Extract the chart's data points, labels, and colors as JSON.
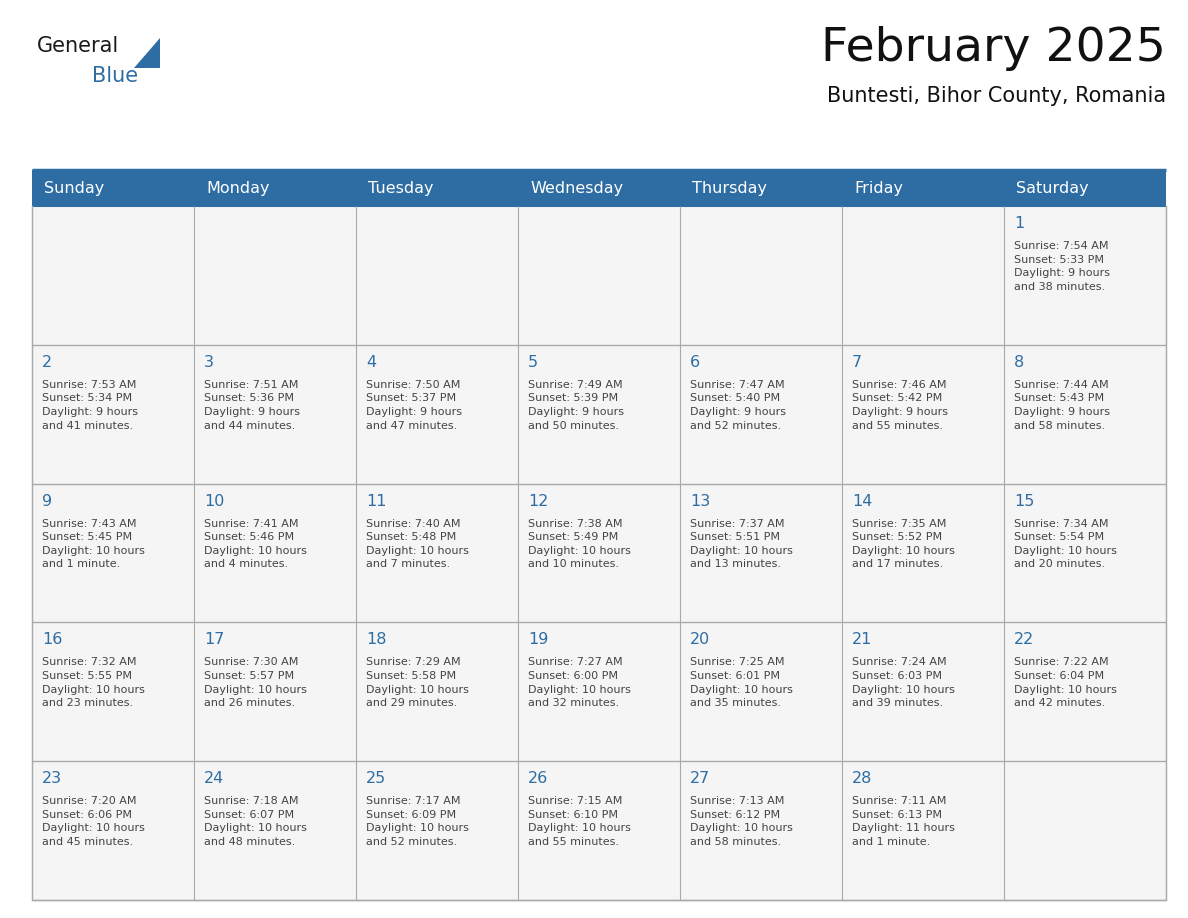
{
  "title": "February 2025",
  "subtitle": "Buntesti, Bihor County, Romania",
  "header_bg": "#2E6DA4",
  "header_text": "#FFFFFF",
  "cell_bg": "#F5F5F5",
  "day_number_color": "#2E6DA4",
  "text_color": "#444444",
  "border_color": "#AAAAAA",
  "line_color": "#2E6DA4",
  "days_of_week": [
    "Sunday",
    "Monday",
    "Tuesday",
    "Wednesday",
    "Thursday",
    "Friday",
    "Saturday"
  ],
  "weeks": [
    [
      {
        "day": "",
        "info": ""
      },
      {
        "day": "",
        "info": ""
      },
      {
        "day": "",
        "info": ""
      },
      {
        "day": "",
        "info": ""
      },
      {
        "day": "",
        "info": ""
      },
      {
        "day": "",
        "info": ""
      },
      {
        "day": "1",
        "info": "Sunrise: 7:54 AM\nSunset: 5:33 PM\nDaylight: 9 hours\nand 38 minutes."
      }
    ],
    [
      {
        "day": "2",
        "info": "Sunrise: 7:53 AM\nSunset: 5:34 PM\nDaylight: 9 hours\nand 41 minutes."
      },
      {
        "day": "3",
        "info": "Sunrise: 7:51 AM\nSunset: 5:36 PM\nDaylight: 9 hours\nand 44 minutes."
      },
      {
        "day": "4",
        "info": "Sunrise: 7:50 AM\nSunset: 5:37 PM\nDaylight: 9 hours\nand 47 minutes."
      },
      {
        "day": "5",
        "info": "Sunrise: 7:49 AM\nSunset: 5:39 PM\nDaylight: 9 hours\nand 50 minutes."
      },
      {
        "day": "6",
        "info": "Sunrise: 7:47 AM\nSunset: 5:40 PM\nDaylight: 9 hours\nand 52 minutes."
      },
      {
        "day": "7",
        "info": "Sunrise: 7:46 AM\nSunset: 5:42 PM\nDaylight: 9 hours\nand 55 minutes."
      },
      {
        "day": "8",
        "info": "Sunrise: 7:44 AM\nSunset: 5:43 PM\nDaylight: 9 hours\nand 58 minutes."
      }
    ],
    [
      {
        "day": "9",
        "info": "Sunrise: 7:43 AM\nSunset: 5:45 PM\nDaylight: 10 hours\nand 1 minute."
      },
      {
        "day": "10",
        "info": "Sunrise: 7:41 AM\nSunset: 5:46 PM\nDaylight: 10 hours\nand 4 minutes."
      },
      {
        "day": "11",
        "info": "Sunrise: 7:40 AM\nSunset: 5:48 PM\nDaylight: 10 hours\nand 7 minutes."
      },
      {
        "day": "12",
        "info": "Sunrise: 7:38 AM\nSunset: 5:49 PM\nDaylight: 10 hours\nand 10 minutes."
      },
      {
        "day": "13",
        "info": "Sunrise: 7:37 AM\nSunset: 5:51 PM\nDaylight: 10 hours\nand 13 minutes."
      },
      {
        "day": "14",
        "info": "Sunrise: 7:35 AM\nSunset: 5:52 PM\nDaylight: 10 hours\nand 17 minutes."
      },
      {
        "day": "15",
        "info": "Sunrise: 7:34 AM\nSunset: 5:54 PM\nDaylight: 10 hours\nand 20 minutes."
      }
    ],
    [
      {
        "day": "16",
        "info": "Sunrise: 7:32 AM\nSunset: 5:55 PM\nDaylight: 10 hours\nand 23 minutes."
      },
      {
        "day": "17",
        "info": "Sunrise: 7:30 AM\nSunset: 5:57 PM\nDaylight: 10 hours\nand 26 minutes."
      },
      {
        "day": "18",
        "info": "Sunrise: 7:29 AM\nSunset: 5:58 PM\nDaylight: 10 hours\nand 29 minutes."
      },
      {
        "day": "19",
        "info": "Sunrise: 7:27 AM\nSunset: 6:00 PM\nDaylight: 10 hours\nand 32 minutes."
      },
      {
        "day": "20",
        "info": "Sunrise: 7:25 AM\nSunset: 6:01 PM\nDaylight: 10 hours\nand 35 minutes."
      },
      {
        "day": "21",
        "info": "Sunrise: 7:24 AM\nSunset: 6:03 PM\nDaylight: 10 hours\nand 39 minutes."
      },
      {
        "day": "22",
        "info": "Sunrise: 7:22 AM\nSunset: 6:04 PM\nDaylight: 10 hours\nand 42 minutes."
      }
    ],
    [
      {
        "day": "23",
        "info": "Sunrise: 7:20 AM\nSunset: 6:06 PM\nDaylight: 10 hours\nand 45 minutes."
      },
      {
        "day": "24",
        "info": "Sunrise: 7:18 AM\nSunset: 6:07 PM\nDaylight: 10 hours\nand 48 minutes."
      },
      {
        "day": "25",
        "info": "Sunrise: 7:17 AM\nSunset: 6:09 PM\nDaylight: 10 hours\nand 52 minutes."
      },
      {
        "day": "26",
        "info": "Sunrise: 7:15 AM\nSunset: 6:10 PM\nDaylight: 10 hours\nand 55 minutes."
      },
      {
        "day": "27",
        "info": "Sunrise: 7:13 AM\nSunset: 6:12 PM\nDaylight: 10 hours\nand 58 minutes."
      },
      {
        "day": "28",
        "info": "Sunrise: 7:11 AM\nSunset: 6:13 PM\nDaylight: 11 hours\nand 1 minute."
      },
      {
        "day": "",
        "info": ""
      }
    ]
  ],
  "logo_general_color": "#1a1a1a",
  "logo_blue_color": "#2E6DA4",
  "logo_triangle_color": "#2E6DA4"
}
